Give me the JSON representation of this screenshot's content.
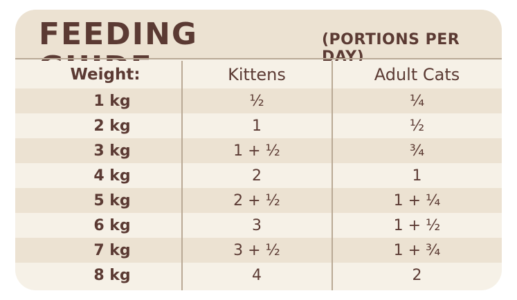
{
  "header": {
    "title": "FEEDING GUIDE",
    "subtitle": "(PORTIONS PER DAY)"
  },
  "table": {
    "columns": [
      "Weight:",
      "Kittens",
      "Adult Cats"
    ],
    "rows": [
      {
        "weight": "1 kg",
        "kittens": "½",
        "adults": "¼"
      },
      {
        "weight": "2 kg",
        "kittens": "1",
        "adults": "½"
      },
      {
        "weight": "3 kg",
        "kittens": "1 + ½",
        "adults": "¾"
      },
      {
        "weight": "4 kg",
        "kittens": "2",
        "adults": "1"
      },
      {
        "weight": "5 kg",
        "kittens": "2 + ½",
        "adults": "1 + ¼"
      },
      {
        "weight": "6 kg",
        "kittens": "3",
        "adults": "1 + ½"
      },
      {
        "weight": "7 kg",
        "kittens": "3 + ½",
        "adults": "1 + ¾"
      },
      {
        "weight": "8 kg",
        "kittens": "4",
        "adults": "2"
      }
    ]
  },
  "colors": {
    "text": "#5b3a33",
    "band": "#ece2d2",
    "card": "#f6f1e7",
    "rule": "#b9a995"
  }
}
